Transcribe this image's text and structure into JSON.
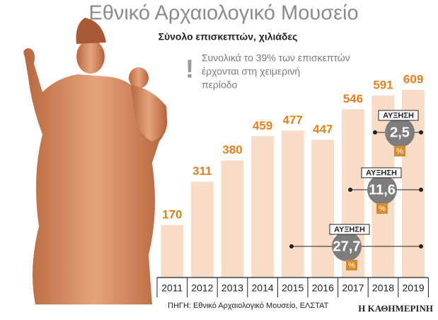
{
  "chart_data": {
    "type": "bar",
    "title": "Εθνικό Αρχαιολογικό Μουσείο",
    "subtitle": "Σύνολο επισκεπτών, χιλιάδες",
    "annotation": [
      "Συνολικά το 39% των επισκεπτών",
      "έρχονται στη χειμερινή",
      "περίοδο"
    ],
    "categories": [
      "2011",
      "2012",
      "2013",
      "2014",
      "2015",
      "2016",
      "2017",
      "2018",
      "2019"
    ],
    "values": [
      170,
      311,
      380,
      459,
      477,
      447,
      546,
      591,
      609
    ],
    "color": "#f7dcc7",
    "label_color": "#e2801f",
    "callouts": [
      {
        "label": "ΑΥΞΗΣΗ",
        "value": 2.5,
        "value_label": "2,5",
        "unit": "%"
      },
      {
        "label": "ΑΥΞΗΣΗ",
        "value": 11.6,
        "value_label": "11,6",
        "unit": "%"
      },
      {
        "label": "ΑΥΞΗΣΗ",
        "value": 27.7,
        "value_label": "27,7",
        "unit": "%"
      }
    ],
    "source": "ΠΗΓΗ: Εθνικό Αρχαιολογικό Μουσείο, ΕΛΣΤΑΤ",
    "brand": "Η ΚΑΘΗΜΕΡΙΝΗ"
  }
}
